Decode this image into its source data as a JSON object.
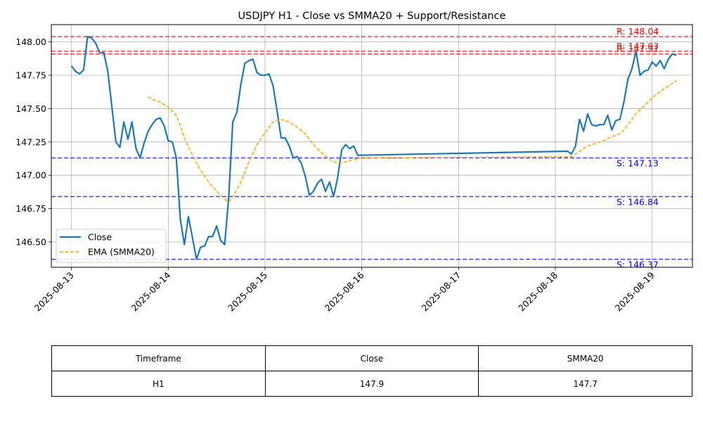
{
  "chart_data": {
    "type": "line",
    "title": "USDJPY H1 - Close vs SMMA20 + Support/Resistance",
    "xlabel": "",
    "ylabel": "",
    "x_ticks": [
      "2025-08-13",
      "2025-08-14",
      "2025-08-15",
      "2025-08-16",
      "2025-08-17",
      "2025-08-18",
      "2025-08-19"
    ],
    "y_ticks": [
      "146.50",
      "146.75",
      "147.00",
      "147.25",
      "147.50",
      "147.75",
      "148.00"
    ],
    "xlim": [
      "2025-08-12T19:00",
      "2025-08-19T10:00"
    ],
    "ylim": [
      146.31,
      148.13
    ],
    "grid": true,
    "legend_position": "lower-left",
    "series": [
      {
        "name": "Close",
        "color": "#1f77b4",
        "style": "solid",
        "points": [
          [
            "2025-08-13T00:00",
            147.82
          ],
          [
            "2025-08-13T01:00",
            147.78
          ],
          [
            "2025-08-13T02:00",
            147.76
          ],
          [
            "2025-08-13T03:00",
            147.79
          ],
          [
            "2025-08-13T04:00",
            148.04
          ],
          [
            "2025-08-13T05:00",
            148.03
          ],
          [
            "2025-08-13T06:00",
            147.99
          ],
          [
            "2025-08-13T07:00",
            147.92
          ],
          [
            "2025-08-13T08:00",
            147.92
          ],
          [
            "2025-08-13T09:00",
            147.78
          ],
          [
            "2025-08-13T10:00",
            147.52
          ],
          [
            "2025-08-13T11:00",
            147.25
          ],
          [
            "2025-08-13T12:00",
            147.21
          ],
          [
            "2025-08-13T13:00",
            147.4
          ],
          [
            "2025-08-13T14:00",
            147.27
          ],
          [
            "2025-08-13T15:00",
            147.4
          ],
          [
            "2025-08-13T16:00",
            147.2
          ],
          [
            "2025-08-13T17:00",
            147.13
          ],
          [
            "2025-08-13T18:00",
            147.24
          ],
          [
            "2025-08-13T19:00",
            147.33
          ],
          [
            "2025-08-13T20:00",
            147.38
          ],
          [
            "2025-08-13T21:00",
            147.42
          ],
          [
            "2025-08-13T22:00",
            147.43
          ],
          [
            "2025-08-13T23:00",
            147.37
          ],
          [
            "2025-08-14T00:00",
            147.26
          ],
          [
            "2025-08-14T01:00",
            147.25
          ],
          [
            "2025-08-14T02:00",
            147.13
          ],
          [
            "2025-08-14T03:00",
            146.67
          ],
          [
            "2025-08-14T04:00",
            146.48
          ],
          [
            "2025-08-14T05:00",
            146.69
          ],
          [
            "2025-08-14T06:00",
            146.53
          ],
          [
            "2025-08-14T07:00",
            146.37
          ],
          [
            "2025-08-14T08:00",
            146.46
          ],
          [
            "2025-08-14T09:00",
            146.47
          ],
          [
            "2025-08-14T10:00",
            146.54
          ],
          [
            "2025-08-14T11:00",
            146.54
          ],
          [
            "2025-08-14T12:00",
            146.62
          ],
          [
            "2025-08-14T13:00",
            146.51
          ],
          [
            "2025-08-14T14:00",
            146.48
          ],
          [
            "2025-08-14T15:00",
            146.84
          ],
          [
            "2025-08-14T16:00",
            147.4
          ],
          [
            "2025-08-14T17:00",
            147.47
          ],
          [
            "2025-08-14T18:00",
            147.68
          ],
          [
            "2025-08-14T19:00",
            147.84
          ],
          [
            "2025-08-14T20:00",
            147.86
          ],
          [
            "2025-08-14T21:00",
            147.87
          ],
          [
            "2025-08-14T22:00",
            147.77
          ],
          [
            "2025-08-14T23:00",
            147.75
          ],
          [
            "2025-08-15T00:00",
            147.75
          ],
          [
            "2025-08-15T01:00",
            147.76
          ],
          [
            "2025-08-15T02:00",
            147.67
          ],
          [
            "2025-08-15T03:00",
            147.48
          ],
          [
            "2025-08-15T04:00",
            147.28
          ],
          [
            "2025-08-15T05:00",
            147.28
          ],
          [
            "2025-08-15T06:00",
            147.22
          ],
          [
            "2025-08-15T07:00",
            147.13
          ],
          [
            "2025-08-15T08:00",
            147.14
          ],
          [
            "2025-08-15T09:00",
            147.09
          ],
          [
            "2025-08-15T10:00",
            146.99
          ],
          [
            "2025-08-15T11:00",
            146.85
          ],
          [
            "2025-08-15T12:00",
            146.88
          ],
          [
            "2025-08-15T13:00",
            146.94
          ],
          [
            "2025-08-15T14:00",
            146.97
          ],
          [
            "2025-08-15T15:00",
            146.88
          ],
          [
            "2025-08-15T16:00",
            146.95
          ],
          [
            "2025-08-15T17:00",
            146.84
          ],
          [
            "2025-08-15T18:00",
            146.98
          ],
          [
            "2025-08-15T19:00",
            147.19
          ],
          [
            "2025-08-15T20:00",
            147.23
          ],
          [
            "2025-08-15T21:00",
            147.2
          ],
          [
            "2025-08-15T22:00",
            147.22
          ],
          [
            "2025-08-15T23:00",
            147.15
          ],
          [
            "2025-08-18T02:00",
            147.18
          ],
          [
            "2025-08-18T03:00",
            147.18
          ],
          [
            "2025-08-18T04:00",
            147.16
          ],
          [
            "2025-08-18T05:00",
            147.22
          ],
          [
            "2025-08-18T06:00",
            147.42
          ],
          [
            "2025-08-18T07:00",
            147.33
          ],
          [
            "2025-08-18T08:00",
            147.46
          ],
          [
            "2025-08-18T09:00",
            147.38
          ],
          [
            "2025-08-18T10:00",
            147.37
          ],
          [
            "2025-08-18T11:00",
            147.38
          ],
          [
            "2025-08-18T12:00",
            147.38
          ],
          [
            "2025-08-18T13:00",
            147.45
          ],
          [
            "2025-08-18T14:00",
            147.34
          ],
          [
            "2025-08-18T15:00",
            147.41
          ],
          [
            "2025-08-18T16:00",
            147.42
          ],
          [
            "2025-08-18T17:00",
            147.55
          ],
          [
            "2025-08-18T18:00",
            147.72
          ],
          [
            "2025-08-18T19:00",
            147.8
          ],
          [
            "2025-08-18T20:00",
            147.93
          ],
          [
            "2025-08-18T21:00",
            147.75
          ],
          [
            "2025-08-18T22:00",
            147.78
          ],
          [
            "2025-08-18T23:00",
            147.79
          ],
          [
            "2025-08-19T00:00",
            147.85
          ],
          [
            "2025-08-19T01:00",
            147.82
          ],
          [
            "2025-08-19T02:00",
            147.86
          ],
          [
            "2025-08-19T03:00",
            147.8
          ],
          [
            "2025-08-19T04:00",
            147.87
          ],
          [
            "2025-08-19T05:00",
            147.91
          ],
          [
            "2025-08-19T06:00",
            147.9
          ]
        ]
      },
      {
        "name": "EMA (SMMA20)",
        "color": "#ffa500",
        "style": "dashed",
        "points": [
          [
            "2025-08-13T19:00",
            147.59
          ],
          [
            "2025-08-13T20:00",
            147.57
          ],
          [
            "2025-08-13T22:00",
            147.55
          ],
          [
            "2025-08-14T00:00",
            147.51
          ],
          [
            "2025-08-14T02:00",
            147.45
          ],
          [
            "2025-08-14T03:00",
            147.37
          ],
          [
            "2025-08-14T04:00",
            147.28
          ],
          [
            "2025-08-14T06:00",
            147.15
          ],
          [
            "2025-08-14T08:00",
            147.04
          ],
          [
            "2025-08-14T10:00",
            146.95
          ],
          [
            "2025-08-14T12:00",
            146.88
          ],
          [
            "2025-08-14T14:00",
            146.82
          ],
          [
            "2025-08-14T15:00",
            146.8
          ],
          [
            "2025-08-14T16:00",
            146.84
          ],
          [
            "2025-08-14T18:00",
            146.95
          ],
          [
            "2025-08-14T20:00",
            147.1
          ],
          [
            "2025-08-14T22:00",
            147.23
          ],
          [
            "2025-08-15T00:00",
            147.32
          ],
          [
            "2025-08-15T02:00",
            147.4
          ],
          [
            "2025-08-15T04:00",
            147.42
          ],
          [
            "2025-08-15T06:00",
            147.4
          ],
          [
            "2025-08-15T08:00",
            147.36
          ],
          [
            "2025-08-15T10:00",
            147.31
          ],
          [
            "2025-08-15T12:00",
            147.23
          ],
          [
            "2025-08-15T14:00",
            147.17
          ],
          [
            "2025-08-15T16:00",
            147.12
          ],
          [
            "2025-08-15T18:00",
            147.09
          ],
          [
            "2025-08-15T20:00",
            147.1
          ],
          [
            "2025-08-15T22:00",
            147.12
          ],
          [
            "2025-08-16T00:00",
            147.13
          ],
          [
            "2025-08-18T04:00",
            147.14
          ],
          [
            "2025-08-18T06:00",
            147.18
          ],
          [
            "2025-08-18T08:00",
            147.22
          ],
          [
            "2025-08-18T10:00",
            147.24
          ],
          [
            "2025-08-18T12:00",
            147.26
          ],
          [
            "2025-08-18T14:00",
            147.29
          ],
          [
            "2025-08-18T16:00",
            147.31
          ],
          [
            "2025-08-18T17:00",
            147.34
          ],
          [
            "2025-08-18T18:00",
            147.38
          ],
          [
            "2025-08-18T20:00",
            147.46
          ],
          [
            "2025-08-18T22:00",
            147.52
          ],
          [
            "2025-08-19T00:00",
            147.58
          ],
          [
            "2025-08-19T02:00",
            147.63
          ],
          [
            "2025-08-19T04:00",
            147.67
          ],
          [
            "2025-08-19T06:00",
            147.71
          ]
        ]
      }
    ],
    "levels": [
      {
        "kind": "resistance",
        "value": 148.04,
        "label": "R: 148.04",
        "color": "#ff0000"
      },
      {
        "kind": "resistance",
        "value": 147.93,
        "label": "R: 147.93",
        "color": "#ff0000"
      },
      {
        "kind": "resistance",
        "value": 147.91,
        "label": "R: 147.91",
        "color": "#ff0000"
      },
      {
        "kind": "support",
        "value": 147.13,
        "label": "S: 147.13",
        "color": "#0000ff"
      },
      {
        "kind": "support",
        "value": 146.84,
        "label": "S: 146.84",
        "color": "#0000ff"
      },
      {
        "kind": "support",
        "value": 146.37,
        "label": "S: 146.37",
        "color": "#0000ff"
      }
    ]
  },
  "table": {
    "headers": [
      "Timeframe",
      "Close",
      "SMMA20"
    ],
    "row": [
      "H1",
      "147.9",
      "147.7"
    ]
  }
}
